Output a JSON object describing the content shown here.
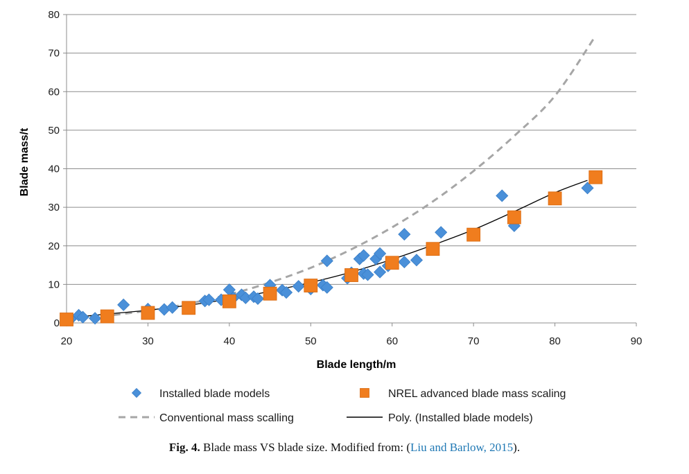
{
  "chart_data": {
    "type": "scatter",
    "title": "",
    "xlabel": "Blade length/m",
    "ylabel": "Blade mass/t",
    "xlim": [
      20,
      90
    ],
    "ylim": [
      0,
      80
    ],
    "xticks": [
      "20",
      "30",
      "40",
      "50",
      "60",
      "70",
      "80",
      "90"
    ],
    "yticks": [
      "0",
      "10",
      "20",
      "30",
      "40",
      "50",
      "60",
      "70",
      "80"
    ],
    "grid": "horizontal",
    "legend_position": "bottom",
    "series": [
      {
        "name": "Installed blade models",
        "type": "scatter",
        "marker": "diamond",
        "color": "#4a90d9",
        "points": [
          [
            20.5,
            1.0
          ],
          [
            21.5,
            2.0
          ],
          [
            22,
            1.5
          ],
          [
            23.5,
            1.2
          ],
          [
            27,
            4.7
          ],
          [
            30,
            3.6
          ],
          [
            32,
            3.5
          ],
          [
            33,
            4.0
          ],
          [
            37,
            5.7
          ],
          [
            37.5,
            6.0
          ],
          [
            39,
            6.0
          ],
          [
            40,
            8.6
          ],
          [
            40.5,
            6.5
          ],
          [
            41.5,
            7.3
          ],
          [
            42,
            6.5
          ],
          [
            43,
            6.8
          ],
          [
            43.5,
            6.3
          ],
          [
            45,
            9.8
          ],
          [
            46.5,
            8.5
          ],
          [
            47,
            7.9
          ],
          [
            48.5,
            9.5
          ],
          [
            50,
            8.8
          ],
          [
            51.5,
            9.8
          ],
          [
            52,
            9.2
          ],
          [
            52,
            16.1
          ],
          [
            54.5,
            11.6
          ],
          [
            55,
            13.0
          ],
          [
            56,
            16.6
          ],
          [
            56.5,
            17.5
          ],
          [
            56.5,
            12.8
          ],
          [
            57,
            12.5
          ],
          [
            58,
            16.6
          ],
          [
            58.5,
            18.0
          ],
          [
            58.5,
            13.2
          ],
          [
            59.5,
            14.8
          ],
          [
            61.5,
            15.8
          ],
          [
            61.5,
            23.0
          ],
          [
            63,
            16.3
          ],
          [
            66,
            23.5
          ],
          [
            73.5,
            33.0
          ],
          [
            75,
            25.2
          ],
          [
            84,
            35.0
          ]
        ]
      },
      {
        "name": "NREL advanced blade mass scaling",
        "type": "scatter",
        "marker": "square",
        "color": "#f07d1e",
        "points": [
          [
            20,
            0.9
          ],
          [
            25,
            1.7
          ],
          [
            30,
            2.6
          ],
          [
            35,
            3.9
          ],
          [
            40,
            5.6
          ],
          [
            45,
            7.6
          ],
          [
            50,
            9.7
          ],
          [
            55,
            12.4
          ],
          [
            60,
            15.6
          ],
          [
            65,
            19.2
          ],
          [
            70,
            22.9
          ],
          [
            75,
            27.4
          ],
          [
            80,
            32.3
          ],
          [
            85,
            37.8
          ]
        ]
      },
      {
        "name": "Conventional mass scalling",
        "type": "line",
        "style": "dashed",
        "color": "#a6a6a6",
        "x": [
          20,
          25,
          30,
          35,
          40,
          45,
          50,
          55,
          60,
          65,
          70,
          75,
          80,
          85
        ],
        "y": [
          1.0,
          1.9,
          3.2,
          5.0,
          7.4,
          10.5,
          14.3,
          19.1,
          24.8,
          31.5,
          39.4,
          48.5,
          58.9,
          74.5
        ]
      },
      {
        "name": "Poly. (Installed blade models)",
        "type": "line",
        "style": "solid",
        "color": "#000000",
        "x": [
          20,
          25,
          30,
          35,
          40,
          45,
          50,
          55,
          60,
          65,
          70,
          75,
          80,
          84
        ],
        "y": [
          1.3,
          2.3,
          3.3,
          4.6,
          6.2,
          8.2,
          10.5,
          13.2,
          16.5,
          20.2,
          24.2,
          28.9,
          33.8,
          37.0
        ]
      }
    ]
  },
  "caption": {
    "label": "Fig. 4.",
    "text": "Blade mass VS blade size. Modified from: (",
    "reference": "Liu and Barlow, 2015",
    "close": ")."
  }
}
